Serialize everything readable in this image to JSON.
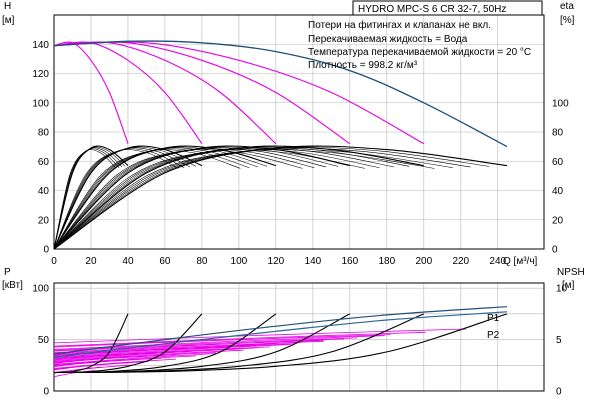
{
  "chart_data": [
    {
      "type": "line",
      "title": "HYDRO MPC-S 6 CR 32-7, 50Hz",
      "notes": [
        "Потери на фитингах и клапанах не вкл.",
        "Перекачиваемая жидкость = Вода",
        "Температура перекачиваемой жидкости = 20 °C",
        "Плотность = 998.2 кг/м³"
      ],
      "xlabel": "Q [м³/ч]",
      "ylabel_left": [
        "H",
        "[м]"
      ],
      "ylabel_right": [
        "eta",
        "[%]"
      ],
      "xlim": [
        0,
        265
      ],
      "ylim_left": [
        0,
        160
      ],
      "ylim_right": [
        0,
        160
      ],
      "x_ticks": [
        "0",
        "20",
        "40",
        "60",
        "80",
        "100",
        "120",
        "140",
        "160",
        "180",
        "200",
        "220",
        "240"
      ],
      "y_ticks_left": [
        "0",
        "20",
        "40",
        "60",
        "80",
        "100",
        "120",
        "140"
      ],
      "y_ticks_right": [
        "0",
        "20",
        "40",
        "60",
        "80",
        "100"
      ],
      "head_curves": [
        {
          "pumps": 1,
          "x": [
            0,
            10,
            20,
            30,
            40
          ],
          "y": [
            139,
            141,
            129,
            107,
            72
          ]
        },
        {
          "pumps": 2,
          "x": [
            0,
            20,
            40,
            60,
            80
          ],
          "y": [
            139,
            141,
            129,
            107,
            72
          ]
        },
        {
          "pumps": 3,
          "x": [
            0,
            30,
            60,
            90,
            120
          ],
          "y": [
            139,
            141,
            129,
            107,
            72
          ]
        },
        {
          "pumps": 4,
          "x": [
            0,
            40,
            80,
            120,
            160
          ],
          "y": [
            139,
            141,
            129,
            107,
            72
          ]
        },
        {
          "pumps": 5,
          "x": [
            0,
            50,
            100,
            150,
            200
          ],
          "y": [
            139,
            141,
            129,
            107,
            72
          ]
        },
        {
          "pumps": 6,
          "x": [
            0,
            40,
            80,
            120,
            160,
            200,
            245
          ],
          "y": [
            139,
            142,
            141,
            135,
            122,
            100,
            70
          ]
        }
      ],
      "efficiency_curves": [
        {
          "pumps": 1,
          "x": [
            0,
            10,
            20,
            30,
            40
          ],
          "y": [
            0,
            52,
            69,
            68,
            57
          ]
        },
        {
          "pumps": 2,
          "x": [
            0,
            20,
            40,
            60,
            80
          ],
          "y": [
            0,
            52,
            69,
            68,
            57
          ]
        },
        {
          "pumps": 3,
          "x": [
            0,
            30,
            60,
            90,
            120
          ],
          "y": [
            0,
            52,
            69,
            68,
            57
          ]
        },
        {
          "pumps": 4,
          "x": [
            0,
            40,
            80,
            120,
            160
          ],
          "y": [
            0,
            52,
            69,
            68,
            57
          ]
        },
        {
          "pumps": 5,
          "x": [
            0,
            50,
            100,
            150,
            200
          ],
          "y": [
            0,
            52,
            69,
            68,
            57
          ]
        },
        {
          "pumps": 6,
          "x": [
            0,
            60,
            120,
            180,
            245
          ],
          "y": [
            0,
            52,
            69,
            68,
            57
          ]
        }
      ]
    },
    {
      "type": "line",
      "xlabel": "",
      "ylabel_left": [
        "P",
        "[кВт]"
      ],
      "ylabel_right": [
        "NPSH",
        "[м]"
      ],
      "xlim": [
        0,
        265
      ],
      "ylim_left": [
        0,
        105
      ],
      "ylim_right": [
        0,
        10.5
      ],
      "y_ticks_left": [
        "0",
        "50",
        "100"
      ],
      "y_ticks_right": [
        "0",
        "5",
        "10"
      ],
      "series": [
        {
          "name": "P1",
          "x": [
            0,
            60,
            120,
            180,
            245
          ],
          "y": [
            36,
            50,
            63,
            74,
            82
          ]
        },
        {
          "name": "P2",
          "x": [
            0,
            60,
            120,
            180,
            245
          ],
          "y": [
            33,
            46,
            58,
            69,
            77
          ]
        }
      ],
      "npsh_curves": [
        {
          "pumps": 1,
          "x": [
            0,
            10,
            20,
            30,
            40
          ],
          "y": [
            1.8,
            1.9,
            2.4,
            3.8,
            7.5
          ]
        },
        {
          "pumps": 2,
          "x": [
            0,
            20,
            40,
            60,
            80
          ],
          "y": [
            1.8,
            1.9,
            2.4,
            3.8,
            7.5
          ]
        },
        {
          "pumps": 3,
          "x": [
            0,
            30,
            60,
            90,
            120
          ],
          "y": [
            1.8,
            1.9,
            2.4,
            3.8,
            7.5
          ]
        },
        {
          "pumps": 4,
          "x": [
            0,
            40,
            80,
            120,
            160
          ],
          "y": [
            1.8,
            1.9,
            2.4,
            3.8,
            7.5
          ]
        },
        {
          "pumps": 5,
          "x": [
            0,
            50,
            100,
            150,
            200
          ],
          "y": [
            1.8,
            1.9,
            2.4,
            3.8,
            7.5
          ]
        },
        {
          "pumps": 6,
          "x": [
            0,
            60,
            120,
            180,
            245
          ],
          "y": [
            1.8,
            1.9,
            2.4,
            3.8,
            7.5
          ]
        }
      ]
    }
  ]
}
